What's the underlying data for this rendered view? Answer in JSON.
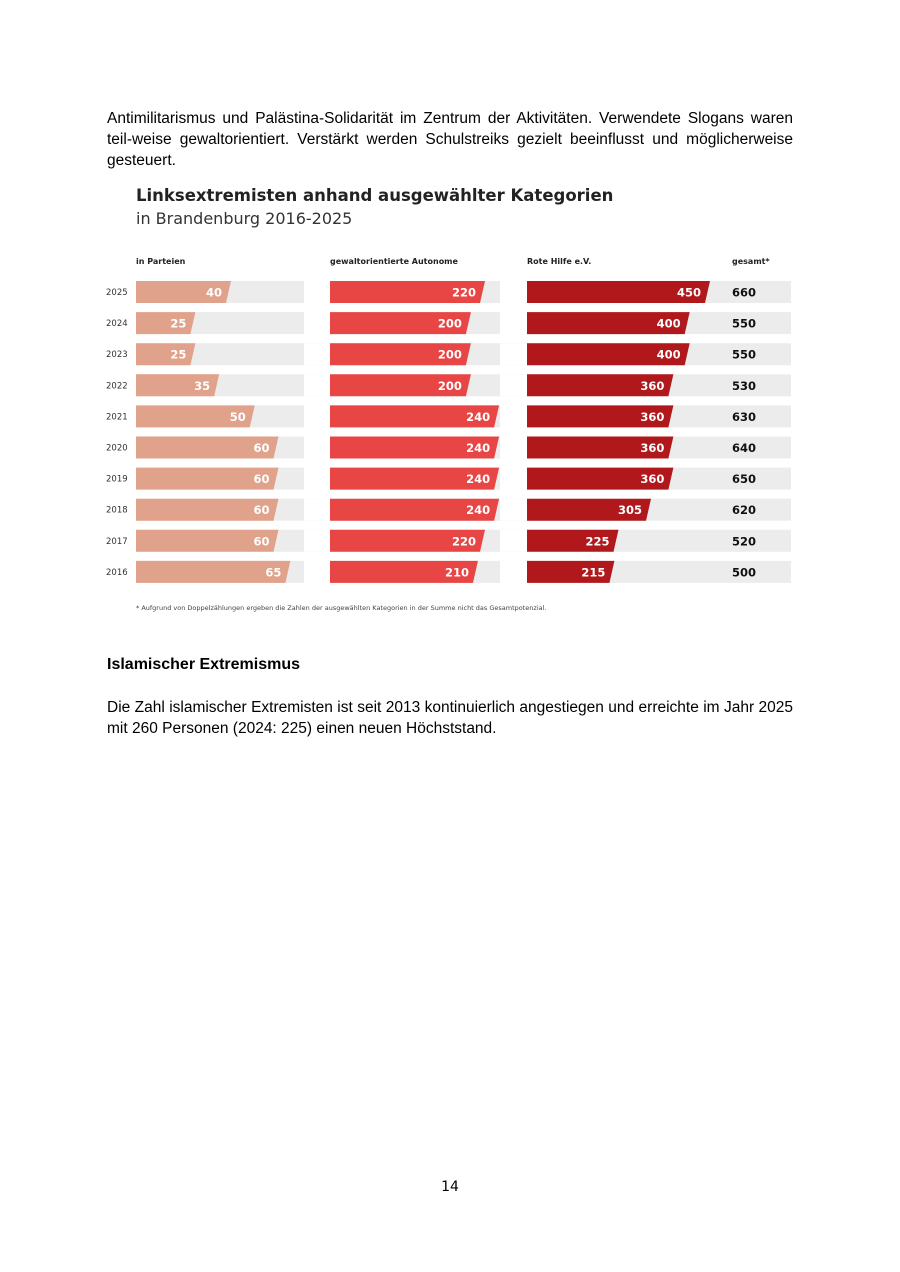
{
  "text": {
    "paragraph_1": "Antimilitarismus und Palästina-Solidarität im Zentrum der Aktivitäten. Verwendete Slogans waren teil-weise gewaltorientiert. Verstärkt werden Schulstreiks gezielt beeinflusst und möglicherweise gesteuert.",
    "heading": "Islamischer Extremismus",
    "paragraph_2": "Die Zahl islamischer Extremisten ist seit 2013 kontinuierlich angestiegen und erreichte im Jahr 2025 mit 260 Personen (2024: 225) einen neuen Höchststand.",
    "page_number": "14"
  },
  "chart_data": {
    "type": "bar",
    "title": "Linksextremisten anhand ausgewählter Kategorien",
    "subtitle": "in Brandenburg 2016-2025",
    "categories": [
      "2025",
      "2024",
      "2023",
      "2022",
      "2021",
      "2020",
      "2019",
      "2018",
      "2017",
      "2016"
    ],
    "series": [
      {
        "name": "in Parteien",
        "values": [
          40,
          25,
          25,
          35,
          50,
          60,
          60,
          60,
          60,
          65
        ],
        "color": "#e0a28a"
      },
      {
        "name": "gewaltorientierte Autonome",
        "values": [
          220,
          200,
          200,
          200,
          240,
          240,
          240,
          240,
          220,
          210
        ],
        "color": "#e84545"
      },
      {
        "name": "Rote Hilfe e.V.",
        "values": [
          450,
          400,
          400,
          360,
          360,
          360,
          360,
          305,
          225,
          215
        ],
        "color": "#b0181c"
      }
    ],
    "totals_label": "gesamt*",
    "totals": [
      660,
      550,
      550,
      530,
      630,
      640,
      650,
      620,
      520,
      500
    ],
    "note": "* Aufgrund von Doppelzählungen ergeben die Zahlen der ausgewählten Kategorien in der Summe nicht das Gesamtpotenzial.",
    "track_color": "#ececec"
  }
}
